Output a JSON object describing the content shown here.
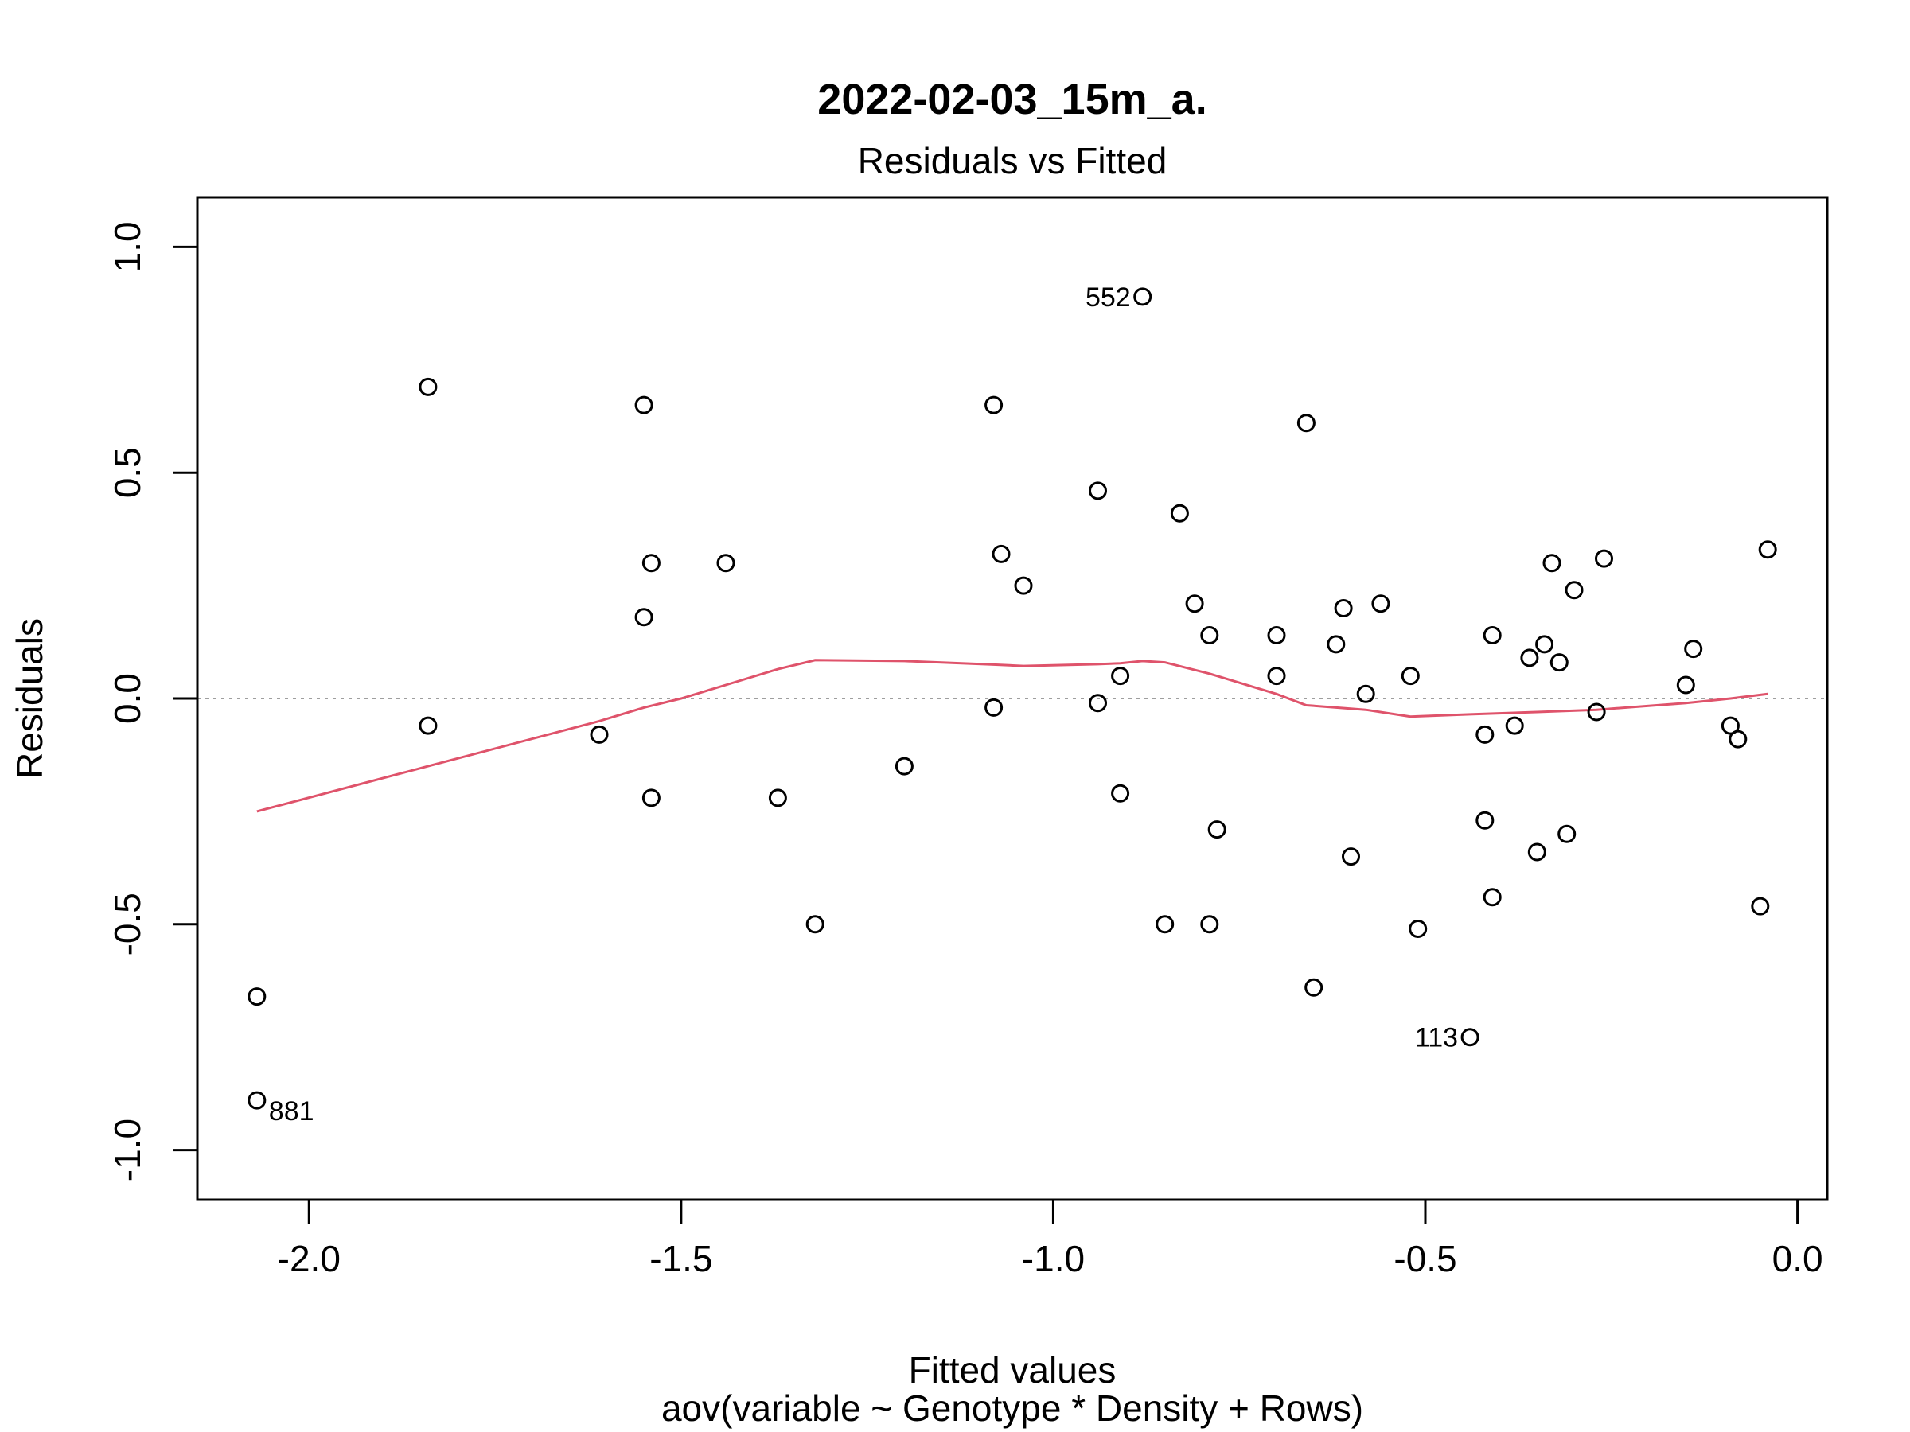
{
  "chart_data": {
    "type": "scatter",
    "title": "2022-02-03_15m_a.",
    "subtitle": "Residuals vs Fitted",
    "xlabel": "Fitted values",
    "xlabel2": "aov(variable ~ Genotype * Density + Rows)",
    "ylabel": "Residuals",
    "xlim": [
      -2.15,
      0.04
    ],
    "ylim": [
      -1.11,
      1.11
    ],
    "x_ticks": [
      -2.0,
      -1.5,
      -1.0,
      -0.5,
      0.0
    ],
    "x_tick_labels": [
      "-2.0",
      "-1.5",
      "-1.0",
      "-0.5",
      "0.0"
    ],
    "y_ticks": [
      -1.0,
      -0.5,
      0.0,
      0.5,
      1.0
    ],
    "y_tick_labels": [
      "-1.0",
      "-0.5",
      "0.0",
      "0.5",
      "1.0"
    ],
    "reference_line": 0.0,
    "points": [
      {
        "x": -2.07,
        "y": -0.66
      },
      {
        "x": -2.07,
        "y": -0.89,
        "label": "881"
      },
      {
        "x": -1.84,
        "y": 0.69
      },
      {
        "x": -1.84,
        "y": -0.06
      },
      {
        "x": -1.55,
        "y": 0.65
      },
      {
        "x": -1.54,
        "y": 0.3
      },
      {
        "x": -1.55,
        "y": 0.18
      },
      {
        "x": -1.54,
        "y": -0.22
      },
      {
        "x": -1.61,
        "y": -0.08
      },
      {
        "x": -1.44,
        "y": 0.3
      },
      {
        "x": -1.37,
        "y": -0.22
      },
      {
        "x": -1.32,
        "y": -0.5
      },
      {
        "x": -1.2,
        "y": -0.15
      },
      {
        "x": -1.08,
        "y": 0.65
      },
      {
        "x": -1.07,
        "y": 0.32
      },
      {
        "x": -1.04,
        "y": 0.25
      },
      {
        "x": -1.08,
        "y": -0.02
      },
      {
        "x": -0.94,
        "y": 0.46
      },
      {
        "x": -0.94,
        "y": -0.01
      },
      {
        "x": -0.91,
        "y": 0.05
      },
      {
        "x": -0.91,
        "y": -0.21
      },
      {
        "x": -0.88,
        "y": 0.89,
        "label": "552"
      },
      {
        "x": -0.85,
        "y": -0.5
      },
      {
        "x": -0.83,
        "y": 0.41
      },
      {
        "x": -0.81,
        "y": 0.21
      },
      {
        "x": -0.79,
        "y": 0.14
      },
      {
        "x": -0.78,
        "y": -0.29
      },
      {
        "x": -0.79,
        "y": -0.5
      },
      {
        "x": -0.7,
        "y": 0.14
      },
      {
        "x": -0.7,
        "y": 0.05
      },
      {
        "x": -0.66,
        "y": 0.61
      },
      {
        "x": -0.65,
        "y": -0.64
      },
      {
        "x": -0.62,
        "y": 0.12
      },
      {
        "x": -0.61,
        "y": 0.2
      },
      {
        "x": -0.6,
        "y": -0.35
      },
      {
        "x": -0.58,
        "y": 0.01
      },
      {
        "x": -0.56,
        "y": 0.21
      },
      {
        "x": -0.52,
        "y": 0.05
      },
      {
        "x": -0.51,
        "y": -0.51
      },
      {
        "x": -0.44,
        "y": -0.75,
        "label": "113"
      },
      {
        "x": -0.42,
        "y": -0.08
      },
      {
        "x": -0.42,
        "y": -0.27
      },
      {
        "x": -0.41,
        "y": 0.14
      },
      {
        "x": -0.41,
        "y": -0.44
      },
      {
        "x": -0.38,
        "y": -0.06
      },
      {
        "x": -0.36,
        "y": 0.09
      },
      {
        "x": -0.35,
        "y": -0.34
      },
      {
        "x": -0.34,
        "y": 0.12
      },
      {
        "x": -0.33,
        "y": 0.3
      },
      {
        "x": -0.32,
        "y": 0.08
      },
      {
        "x": -0.31,
        "y": -0.3
      },
      {
        "x": -0.3,
        "y": 0.24
      },
      {
        "x": -0.27,
        "y": -0.03
      },
      {
        "x": -0.26,
        "y": 0.31
      },
      {
        "x": -0.15,
        "y": 0.03
      },
      {
        "x": -0.14,
        "y": 0.11
      },
      {
        "x": -0.09,
        "y": -0.06
      },
      {
        "x": -0.08,
        "y": -0.09
      },
      {
        "x": -0.05,
        "y": -0.46
      },
      {
        "x": -0.04,
        "y": 0.33
      }
    ],
    "smooth_line": {
      "x": [
        -2.07,
        -1.84,
        -1.61,
        -1.55,
        -1.5,
        -1.44,
        -1.37,
        -1.32,
        -1.2,
        -1.08,
        -1.04,
        -0.94,
        -0.91,
        -0.88,
        -0.85,
        -0.79,
        -0.7,
        -0.66,
        -0.58,
        -0.52,
        -0.44,
        -0.35,
        -0.27,
        -0.15,
        -0.09,
        -0.04
      ],
      "y": [
        -0.25,
        -0.15,
        -0.05,
        -0.02,
        0.0,
        0.03,
        0.065,
        0.085,
        0.083,
        0.075,
        0.072,
        0.076,
        0.078,
        0.083,
        0.08,
        0.055,
        0.01,
        -0.015,
        -0.025,
        -0.04,
        -0.035,
        -0.03,
        -0.025,
        -0.01,
        0.0,
        0.01
      ],
      "color": "#df536b"
    },
    "grid": false,
    "legend": "none"
  }
}
